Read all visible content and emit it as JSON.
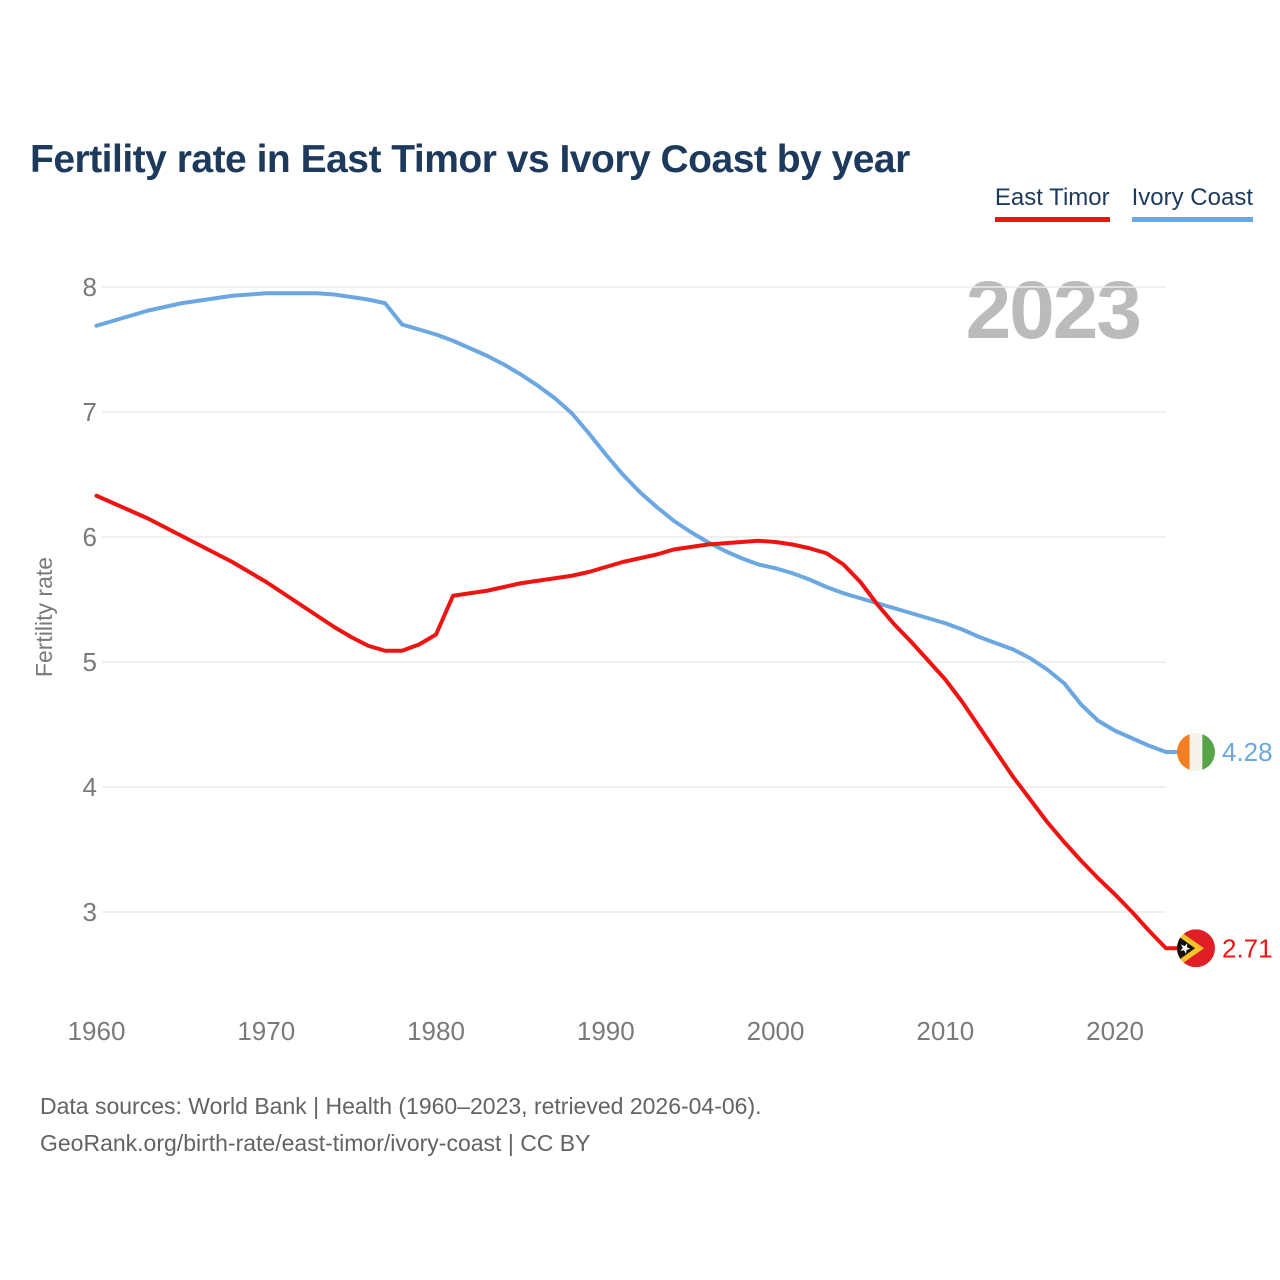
{
  "header": {
    "title": "Fertility rate in East Timor vs Ivory Coast by year"
  },
  "legend": {
    "items": [
      {
        "label": "East Timor",
        "color": "#ee1412"
      },
      {
        "label": "Ivory Coast",
        "color": "#6ba7e0"
      }
    ]
  },
  "watermark": {
    "text": "2023"
  },
  "footer": {
    "line1": "Data sources: World Bank | Health (1960–2023, retrieved 2026-04-06).",
    "line2": "GeoRank.org/birth-rate/east-timor/ivory-coast | CC BY"
  },
  "flags": {
    "east_timor": {
      "field": "#df1e26",
      "arrow_yellow": "#f8c22a",
      "arrow_black": "#16100c",
      "star": "#ffffff"
    },
    "ivory_coast": {
      "orange": "#f57f1f",
      "white": "#f4f2ed",
      "green": "#58a348"
    }
  },
  "chart_data": {
    "type": "line",
    "title": "Fertility rate in East Timor vs Ivory Coast by year",
    "xlabel": "",
    "ylabel": "Fertility rate",
    "grid": "horizontal",
    "legend_position": "top-right",
    "current_year": "2023",
    "x_ticks": [
      1960,
      1970,
      1980,
      1990,
      2000,
      2010,
      2020
    ],
    "y_ticks": [
      3,
      4,
      5,
      6,
      7,
      8
    ],
    "ylim": [
      2.45,
      8.2
    ],
    "x": [
      1960,
      1961,
      1962,
      1963,
      1964,
      1965,
      1966,
      1967,
      1968,
      1969,
      1970,
      1971,
      1972,
      1973,
      1974,
      1975,
      1976,
      1977,
      1978,
      1979,
      1980,
      1981,
      1982,
      1983,
      1984,
      1985,
      1986,
      1987,
      1988,
      1989,
      1990,
      1991,
      1992,
      1993,
      1994,
      1995,
      1996,
      1997,
      1998,
      1999,
      2000,
      2001,
      2002,
      2003,
      2004,
      2005,
      2006,
      2007,
      2008,
      2009,
      2010,
      2011,
      2012,
      2013,
      2014,
      2015,
      2016,
      2017,
      2018,
      2019,
      2020,
      2021,
      2022,
      2023
    ],
    "series": [
      {
        "name": "East Timor",
        "color": "#ee1412",
        "flag": "east_timor",
        "end_label": "2.71",
        "end_value": 2.71,
        "values": [
          6.33,
          6.27,
          6.21,
          6.15,
          6.08,
          6.01,
          5.94,
          5.87,
          5.8,
          5.72,
          5.64,
          5.55,
          5.46,
          5.37,
          5.28,
          5.2,
          5.13,
          5.09,
          5.09,
          5.14,
          5.22,
          5.53,
          5.55,
          5.57,
          5.6,
          5.63,
          5.65,
          5.67,
          5.69,
          5.72,
          5.76,
          5.8,
          5.83,
          5.86,
          5.9,
          5.92,
          5.94,
          5.95,
          5.96,
          5.97,
          5.96,
          5.94,
          5.91,
          5.87,
          5.78,
          5.64,
          5.46,
          5.3,
          5.16,
          5.01,
          4.86,
          4.68,
          4.48,
          4.28,
          4.08,
          3.9,
          3.72,
          3.56,
          3.41,
          3.27,
          3.14,
          3.0,
          2.85,
          2.71
        ]
      },
      {
        "name": "Ivory Coast",
        "color": "#6ba7e0",
        "flag": "ivory_coast",
        "end_label": "4.28",
        "end_value": 4.28,
        "values": [
          7.69,
          7.73,
          7.77,
          7.81,
          7.84,
          7.87,
          7.89,
          7.91,
          7.93,
          7.94,
          7.95,
          7.95,
          7.95,
          7.95,
          7.94,
          7.92,
          7.9,
          7.87,
          7.7,
          7.66,
          7.62,
          7.57,
          7.51,
          7.45,
          7.38,
          7.3,
          7.21,
          7.11,
          6.99,
          6.83,
          6.66,
          6.5,
          6.36,
          6.24,
          6.13,
          6.04,
          5.96,
          5.89,
          5.83,
          5.78,
          5.75,
          5.71,
          5.66,
          5.6,
          5.55,
          5.51,
          5.47,
          5.43,
          5.39,
          5.35,
          5.31,
          5.26,
          5.2,
          5.15,
          5.1,
          5.03,
          4.94,
          4.83,
          4.66,
          4.53,
          4.45,
          4.39,
          4.33,
          4.28
        ]
      }
    ]
  }
}
